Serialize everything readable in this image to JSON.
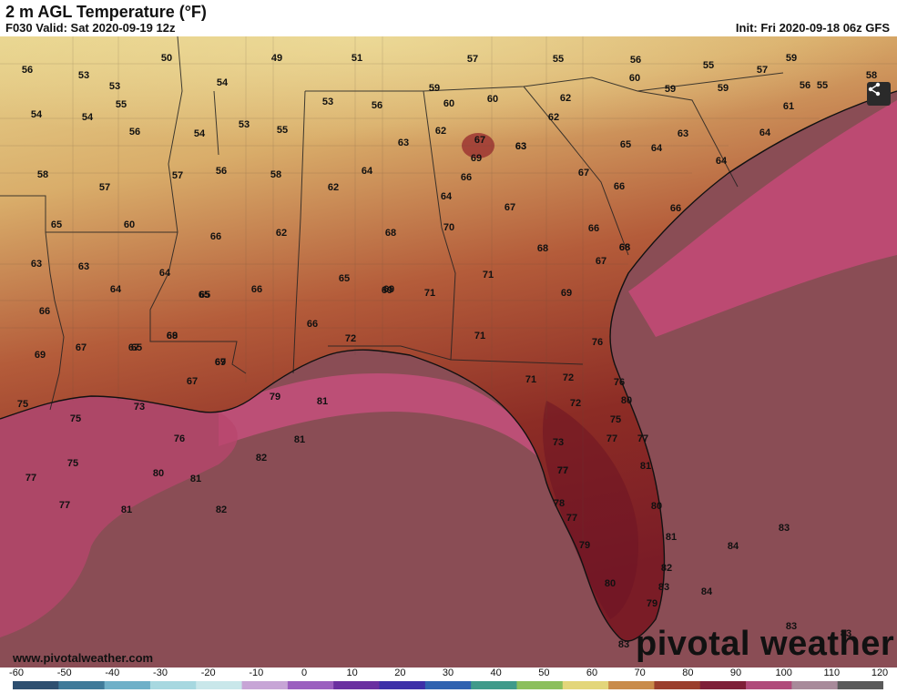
{
  "header": {
    "title": "2 m AGL Temperature (°F)",
    "valid": "F030 Valid: Sat 2020-09-19 12z",
    "init": "Init: Fri 2020-09-18 06z GFS"
  },
  "footer": {
    "website": "www.pivotalweather.com",
    "brand": "pivotal weather"
  },
  "icons": {
    "share": "share-icon"
  },
  "colorscale": {
    "ticks": [
      "-60",
      "-50",
      "-40",
      "-30",
      "-20",
      "-10",
      "0",
      "10",
      "20",
      "30",
      "40",
      "50",
      "60",
      "70",
      "80",
      "90",
      "100",
      "110",
      "120"
    ],
    "colors": [
      "#2e4f70",
      "#3f7a99",
      "#6fb0c8",
      "#a7d8e0",
      "#c9e7ea",
      "#c7a5d6",
      "#9b5fbf",
      "#6a2fa0",
      "#3c2fa8",
      "#2f62b0",
      "#3f9a8a",
      "#8cbf5c",
      "#e3d67a",
      "#c98b4a",
      "#9a3e2c",
      "#7e1f38",
      "#b04a7a",
      "#a88a9a",
      "#5a5a5a"
    ]
  },
  "labels": [
    {
      "t": "56"
    },
    {
      "t": "53"
    },
    {
      "t": "50"
    },
    {
      "t": "49"
    },
    {
      "t": "51"
    },
    {
      "t": "57"
    },
    {
      "t": "55"
    },
    {
      "t": "56"
    },
    {
      "t": "55"
    },
    {
      "t": "57"
    },
    {
      "t": "59"
    },
    {
      "t": "53"
    },
    {
      "t": "54"
    },
    {
      "t": "55"
    },
    {
      "t": "54"
    },
    {
      "t": "54"
    },
    {
      "t": "56"
    },
    {
      "t": "53"
    },
    {
      "t": "55"
    },
    {
      "t": "56"
    },
    {
      "t": "59"
    },
    {
      "t": "60"
    },
    {
      "t": "60"
    },
    {
      "t": "59"
    },
    {
      "t": "59"
    },
    {
      "t": "60"
    },
    {
      "t": "56"
    },
    {
      "t": "62"
    },
    {
      "t": "62"
    },
    {
      "t": "62"
    },
    {
      "t": "63"
    },
    {
      "t": "67"
    },
    {
      "t": "54"
    },
    {
      "t": "53"
    },
    {
      "t": "55"
    },
    {
      "t": "63"
    },
    {
      "t": "65"
    },
    {
      "t": "64"
    },
    {
      "t": "63"
    },
    {
      "t": "69"
    },
    {
      "t": "63"
    },
    {
      "t": "64"
    },
    {
      "t": "58"
    },
    {
      "t": "57"
    },
    {
      "t": "56"
    },
    {
      "t": "58"
    },
    {
      "t": "64"
    },
    {
      "t": "66"
    },
    {
      "t": "67"
    },
    {
      "t": "64"
    },
    {
      "t": "57"
    },
    {
      "t": "62"
    },
    {
      "t": "65"
    },
    {
      "t": "60"
    },
    {
      "t": "66"
    },
    {
      "t": "62"
    },
    {
      "t": "68"
    },
    {
      "t": "70"
    },
    {
      "t": "67"
    },
    {
      "t": "66"
    },
    {
      "t": "66"
    },
    {
      "t": "68"
    },
    {
      "t": "63"
    },
    {
      "t": "63"
    },
    {
      "t": "64"
    },
    {
      "t": "64"
    },
    {
      "t": "65"
    },
    {
      "t": "66"
    },
    {
      "t": "65"
    },
    {
      "t": "69"
    },
    {
      "t": "71"
    },
    {
      "t": "71"
    },
    {
      "t": "68"
    },
    {
      "t": "67"
    },
    {
      "t": "66"
    },
    {
      "t": "69"
    },
    {
      "t": "69"
    },
    {
      "t": "65"
    },
    {
      "t": "65"
    },
    {
      "t": "69"
    },
    {
      "t": "68"
    },
    {
      "t": "66"
    },
    {
      "t": "67"
    },
    {
      "t": "72"
    },
    {
      "t": "71"
    },
    {
      "t": "76"
    },
    {
      "t": "69"
    },
    {
      "t": "67"
    },
    {
      "t": "67"
    },
    {
      "t": "68"
    },
    {
      "t": "69"
    },
    {
      "t": "67"
    },
    {
      "t": "71"
    },
    {
      "t": "72"
    },
    {
      "t": "76"
    },
    {
      "t": "75"
    },
    {
      "t": "73"
    },
    {
      "t": "79"
    },
    {
      "t": "81"
    },
    {
      "t": "72"
    },
    {
      "t": "80"
    },
    {
      "t": "75"
    },
    {
      "t": "75"
    },
    {
      "t": "76"
    },
    {
      "t": "81"
    },
    {
      "t": "73"
    },
    {
      "t": "77"
    },
    {
      "t": "77"
    },
    {
      "t": "75"
    },
    {
      "t": "82"
    },
    {
      "t": "77"
    },
    {
      "t": "81"
    },
    {
      "t": "77"
    },
    {
      "t": "80"
    },
    {
      "t": "81"
    },
    {
      "t": "77"
    },
    {
      "t": "80"
    },
    {
      "t": "77"
    },
    {
      "t": "81"
    },
    {
      "t": "82"
    },
    {
      "t": "78"
    },
    {
      "t": "77"
    },
    {
      "t": "81"
    },
    {
      "t": "83"
    },
    {
      "t": "79"
    },
    {
      "t": "84"
    },
    {
      "t": "82"
    },
    {
      "t": "80"
    },
    {
      "t": "83"
    },
    {
      "t": "84"
    },
    {
      "t": "79"
    },
    {
      "t": "83"
    },
    {
      "t": "83"
    },
    {
      "t": "83"
    },
    {
      "t": "64"
    },
    {
      "t": "66"
    },
    {
      "t": "61"
    },
    {
      "t": "58"
    }
  ]
}
